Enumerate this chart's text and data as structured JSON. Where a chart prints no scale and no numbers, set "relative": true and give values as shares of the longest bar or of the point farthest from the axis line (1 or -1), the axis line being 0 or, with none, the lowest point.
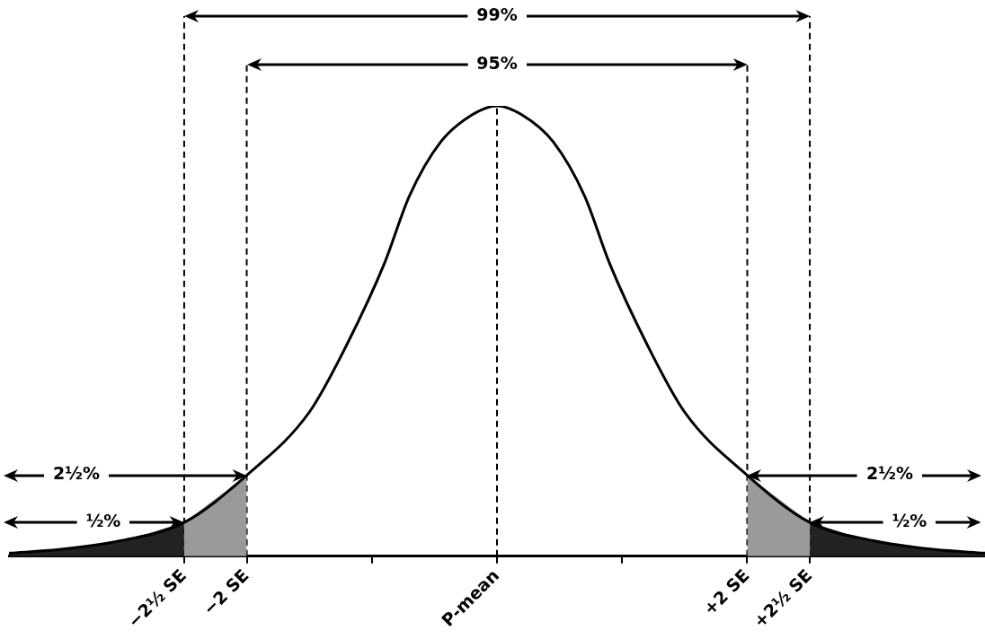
{
  "chart_data": {
    "type": "line",
    "relative": true,
    "marker": "none",
    "x": [
      -3.9,
      -3.5,
      -3.0,
      -2.5,
      -2.0,
      -1.5,
      -1.2,
      -0.9,
      -0.7,
      -0.45,
      -0.2,
      0,
      0.2,
      0.45,
      0.7,
      0.9,
      1.2,
      1.5,
      2.0,
      2.5,
      3.0,
      3.5,
      3.9
    ],
    "series": [
      {
        "color": "#000000",
        "values": [
          0.007,
          0.015,
          0.035,
          0.075,
          0.18,
          0.32,
          0.47,
          0.65,
          0.8,
          0.92,
          0.98,
          1,
          0.98,
          0.92,
          0.8,
          0.65,
          0.47,
          0.32,
          0.18,
          0.075,
          0.035,
          0.015,
          0.007
        ]
      },
      {
        "type": "area",
        "color": "#222222",
        "x": [
          -3.9,
          -3.5,
          -3.0,
          -2.5
        ],
        "values": [
          0.007,
          0.015,
          0.035,
          0.075
        ]
      },
      {
        "type": "area",
        "color": "#9a9a9a",
        "x": [
          -2.5,
          -2.0
        ],
        "values": [
          0.075,
          0.18
        ]
      },
      {
        "type": "area",
        "color": "#9a9a9a",
        "x": [
          2.0,
          2.5
        ],
        "values": [
          0.18,
          0.075
        ]
      },
      {
        "type": "area",
        "color": "#222222",
        "x": [
          2.5,
          3.0,
          3.5,
          3.9
        ],
        "values": [
          0.075,
          0.035,
          0.015,
          0.007
        ]
      }
    ],
    "xlim": [
      -3.9,
      3.9
    ],
    "xticks": [
      {
        "value": -2.5,
        "label": "−2½ SE"
      },
      {
        "value": -2,
        "label": "−2 SE"
      },
      {
        "value": -1,
        "label": null
      },
      {
        "value": 0,
        "label": "P-mean"
      },
      {
        "value": 1,
        "label": null
      },
      {
        "value": 2,
        "label": "+2 SE"
      },
      {
        "value": 2.5,
        "label": "+2½ SE"
      }
    ],
    "ref_lines": [
      {
        "axis": "x",
        "value": -2.5,
        "line_style": "dashed",
        "color": "#000000"
      },
      {
        "axis": "x",
        "value": -2,
        "line_style": "dashed",
        "color": "#000000"
      },
      {
        "axis": "x",
        "value": 0,
        "line_style": "dashed",
        "color": "#000000"
      },
      {
        "axis": "x",
        "value": 2,
        "line_style": "dashed",
        "color": "#000000"
      },
      {
        "axis": "x",
        "value": 2.5,
        "line_style": "dashed",
        "color": "#000000"
      }
    ],
    "annotations": [
      "99%",
      "95%",
      "2½%",
      "½%",
      "2½%",
      "½%"
    ],
    "grid": false,
    "legend": false
  }
}
